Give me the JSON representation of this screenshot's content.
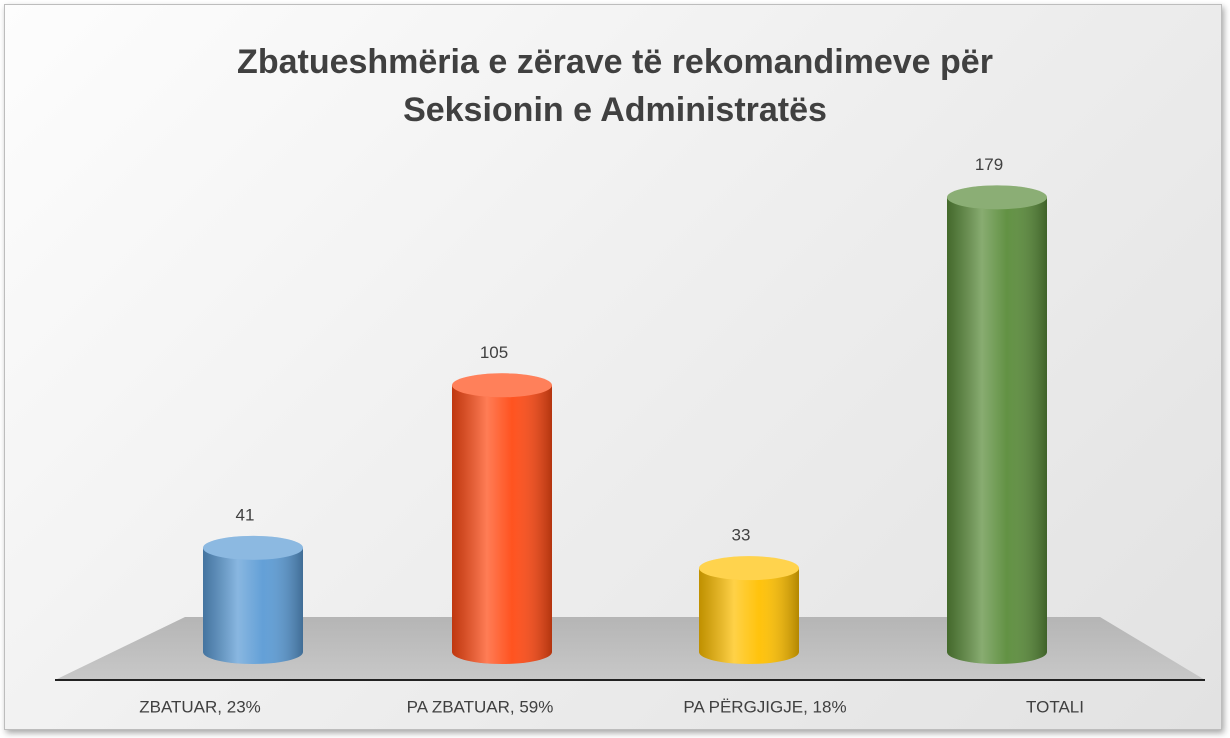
{
  "chart_data": {
    "type": "bar",
    "title": "Zbatueshmëria e zërave të rekomandimeve për Seksionin e Administratës",
    "categories": [
      "ZBATUAR, 23%",
      "PA ZBATUAR, 59%",
      "PA PËRGJIGJE, 18%",
      "TOTALI"
    ],
    "values": [
      41,
      105,
      33,
      179
    ],
    "colors": [
      "#5b9bd5",
      "#ff4a14",
      "#ffc000",
      "#5a8c3a"
    ]
  }
}
